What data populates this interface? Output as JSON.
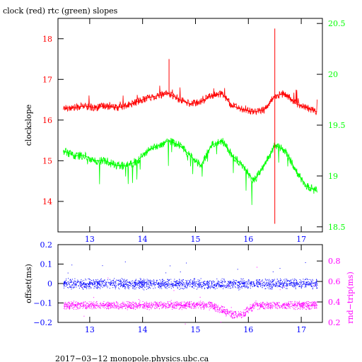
{
  "chart_data": [
    {
      "type": "line",
      "title": "clock (red) rtc (green) slopes",
      "ylabel": "clockslope",
      "xlim": [
        12.4,
        17.4
      ],
      "x_ticks": [
        "13",
        "14",
        "15",
        "16",
        "17"
      ],
      "y_left_lim": [
        13.25,
        18.5
      ],
      "y_left_ticks": [
        "14",
        "15",
        "16",
        "17",
        "18"
      ],
      "y_right_lim": [
        18.45,
        20.55
      ],
      "y_right_ticks": [
        "18.5",
        "19",
        "19.5",
        "20",
        "20.5"
      ],
      "colors": {
        "axis_left": "#ff0000",
        "axis_right": "#00ff00",
        "axis_bottom": "#0000ff"
      },
      "series": [
        {
          "color": "#ff0000",
          "axis": "left",
          "x": [
            12.5,
            12.7,
            12.9,
            13.1,
            13.3,
            13.5,
            13.7,
            13.9,
            14.1,
            14.3,
            14.5,
            14.7,
            14.9,
            15.1,
            15.3,
            15.5,
            15.7,
            15.9,
            16.1,
            16.3,
            16.5,
            16.7,
            16.9,
            17.1,
            17.3
          ],
          "y": [
            16.3,
            16.3,
            16.35,
            16.3,
            16.35,
            16.3,
            16.35,
            16.45,
            16.55,
            16.6,
            16.65,
            16.5,
            16.4,
            16.45,
            16.6,
            16.65,
            16.35,
            16.25,
            16.2,
            16.25,
            16.6,
            16.65,
            16.4,
            16.3,
            16.2
          ]
        },
        {
          "color": "#00ff00",
          "axis": "right",
          "x": [
            12.5,
            12.7,
            12.9,
            13.1,
            13.3,
            13.5,
            13.7,
            13.9,
            14.1,
            14.3,
            14.5,
            14.7,
            14.9,
            15.1,
            15.3,
            15.5,
            15.7,
            15.9,
            16.1,
            16.3,
            16.5,
            16.7,
            16.9,
            17.1,
            17.3
          ],
          "y": [
            19.25,
            19.2,
            19.2,
            19.15,
            19.15,
            19.1,
            19.1,
            19.15,
            19.25,
            19.3,
            19.35,
            19.3,
            19.2,
            19.1,
            19.3,
            19.35,
            19.2,
            19.1,
            18.95,
            19.1,
            19.3,
            19.25,
            19.05,
            18.9,
            18.85
          ]
        }
      ],
      "annotations": [
        {
          "x": 14.5,
          "y": 17.5,
          "kind": "spike"
        },
        {
          "x": 16.5,
          "y": 18.25,
          "kind": "spike"
        },
        {
          "x": 16.5,
          "y": 13.45,
          "kind": "spike"
        }
      ]
    },
    {
      "type": "scatter",
      "ylabel_left": "offset(ms)",
      "ylabel_right": "rnd−trip(ms)",
      "xlim": [
        12.4,
        17.4
      ],
      "x_ticks": [
        "13",
        "14",
        "15",
        "16",
        "17"
      ],
      "y_left_lim": [
        -0.2,
        0.2
      ],
      "y_left_ticks": [
        "0.2",
        "0.1",
        "0",
        "−0.1",
        "−0.2"
      ],
      "y_right_lim": [
        0.2,
        0.96
      ],
      "y_right_ticks": [
        "0.8",
        "0.6",
        "0.4",
        "0.2"
      ],
      "colors": {
        "axis_left": "#0000ff",
        "axis_right": "#ff00ff",
        "axis_bottom": "#0000ff"
      },
      "series": [
        {
          "color": "#0000ff",
          "axis": "left",
          "x": [
            12.5,
            12.9,
            13.3,
            13.7,
            14.1,
            14.5,
            14.9,
            15.3,
            15.7,
            16.1,
            16.5,
            16.9,
            17.3
          ],
          "y": [
            0.0,
            0.0,
            0.0,
            0.0,
            0.0,
            0.0,
            0.0,
            0.0,
            0.0,
            0.0,
            0.0,
            0.0,
            0.0
          ]
        },
        {
          "color": "#ff00ff",
          "axis": "right",
          "x": [
            12.5,
            12.9,
            13.3,
            13.7,
            14.1,
            14.5,
            14.9,
            15.3,
            15.7,
            15.9,
            16.1,
            16.5,
            16.9,
            17.3
          ],
          "y": [
            0.37,
            0.37,
            0.37,
            0.37,
            0.37,
            0.37,
            0.37,
            0.37,
            0.28,
            0.28,
            0.37,
            0.37,
            0.37,
            0.37
          ]
        }
      ]
    }
  ],
  "footer": "2017−03−12  monopole.physics.ubc.ca"
}
